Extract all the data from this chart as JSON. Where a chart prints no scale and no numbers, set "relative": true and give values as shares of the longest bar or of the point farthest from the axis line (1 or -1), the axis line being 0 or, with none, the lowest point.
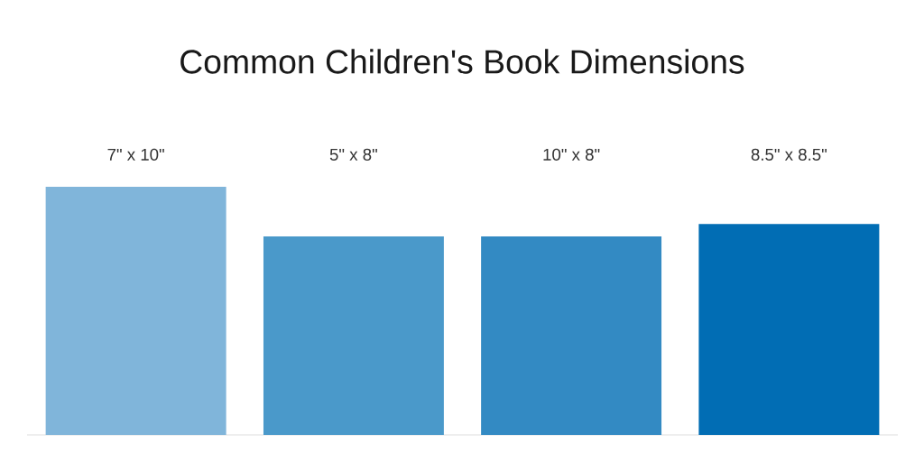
{
  "chart_data": {
    "type": "bar",
    "title": "Common Children's Book Dimensions",
    "categories": [
      "7\" x 10\"",
      "5\" x 8\"",
      "10\" x 8\"",
      "8.5\" x 8.5\""
    ],
    "values": [
      1,
      0.8,
      0.8,
      0.85
    ],
    "colors": [
      "#80b5da",
      "#4a99ca",
      "#338ac3",
      "#016db4"
    ],
    "relative": true
  }
}
